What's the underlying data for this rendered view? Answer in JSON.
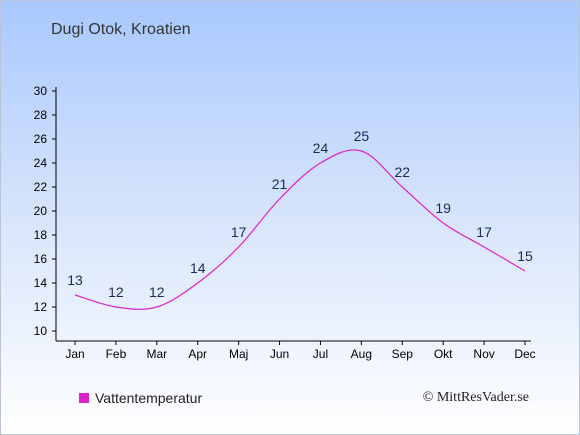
{
  "chart_data": {
    "type": "line",
    "title": "Dugi Otok, Kroatien",
    "categories": [
      "Jan",
      "Feb",
      "Mar",
      "Apr",
      "Maj",
      "Jun",
      "Jul",
      "Aug",
      "Sep",
      "Okt",
      "Nov",
      "Dec"
    ],
    "series": [
      {
        "name": "Vattentemperatur",
        "values": [
          13,
          12,
          12,
          14,
          17,
          21,
          24,
          25,
          22,
          19,
          17,
          15
        ]
      }
    ],
    "y_ticks": [
      10,
      12,
      14,
      16,
      18,
      20,
      22,
      24,
      26,
      28,
      30
    ],
    "ylim": [
      10,
      30
    ],
    "grid": false,
    "legend_position": "bottom-left",
    "line_color": "#dd22cc",
    "label_color": "#1a2a5a"
  },
  "footer": {
    "copyright": "© MittResVader.se"
  }
}
